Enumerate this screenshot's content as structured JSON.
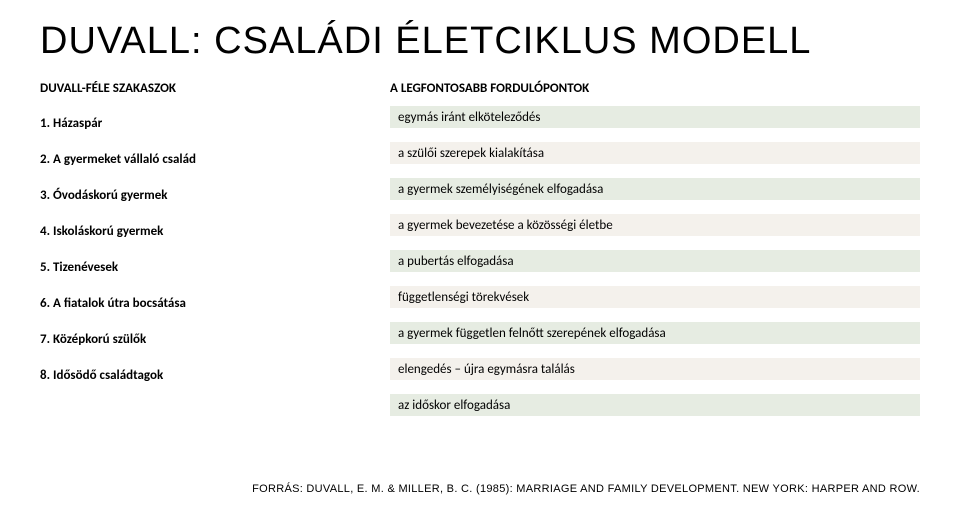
{
  "title": "DUVALL: CSALÁDI ÉLETCIKLUS MODELL",
  "left_header": "DUVALL-FÉLE SZAKASZOK",
  "right_header": "A LEGFONTOSABB FORDULÓPONTOK",
  "stages": [
    "1.    Házaspár",
    "2.    A gyermeket vállaló család",
    "3.    Óvodáskorú gyermek",
    "4.    Iskoláskorú gyermek",
    "5.    Tizenévesek",
    "6.    A fiatalok útra bocsátása",
    "7.    Középkorú szülők",
    "8.    Idősödő családtagok"
  ],
  "turning_points": [
    "egymás iránt elköteleződés",
    "a szülői szerepek kialakítása",
    "a gyermek személyiségének elfogadása",
    "a gyermek bevezetése a közösségi életbe",
    "a pubertás elfogadása",
    "függetlenségi törekvések",
    "a gyermek független felnőtt szerepének elfogadása",
    "elengedés – újra egymásra találás",
    "az időskor elfogadása"
  ],
  "band_colors": [
    "#e6ece2",
    "#f4f1ec"
  ],
  "background_color": "#ffffff",
  "text_color": "#000000",
  "title_fontsize": 38,
  "body_fontsize": 13,
  "source": "FORRÁS: DUVALL, E. M. & MILLER, B. C. (1985): MARRIAGE AND FAMILY DEVELOPMENT. NEW YORK: HARPER AND ROW."
}
